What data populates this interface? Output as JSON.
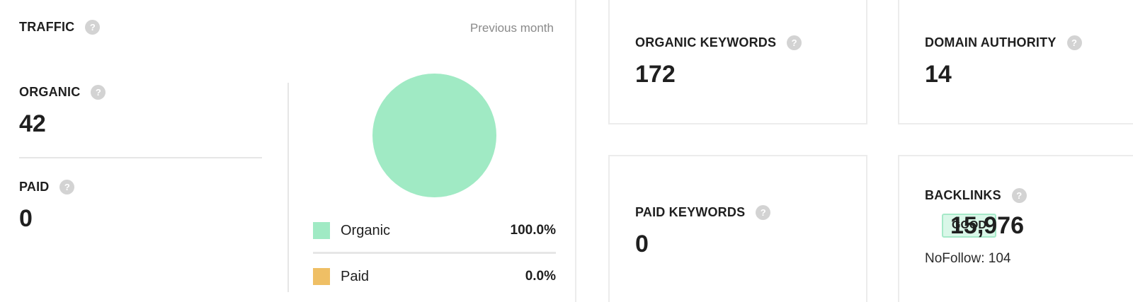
{
  "traffic": {
    "title": "TRAFFIC",
    "period": "Previous month",
    "organic": {
      "label": "ORGANIC",
      "value": "42"
    },
    "paid": {
      "label": "PAID",
      "value": "0"
    },
    "legend": [
      {
        "name": "Organic",
        "pct": "100.0%",
        "color": "#a0eac4"
      },
      {
        "name": "Paid",
        "pct": "0.0%",
        "color": "#efbf65"
      }
    ]
  },
  "cards": {
    "organic_keywords": {
      "label": "ORGANIC KEYWORDS",
      "value": "172"
    },
    "domain_authority": {
      "label": "DOMAIN AUTHORITY",
      "value": "14"
    },
    "paid_keywords": {
      "label": "PAID KEYWORDS",
      "value": "0"
    },
    "backlinks": {
      "label": "BACKLINKS",
      "value": "15,976",
      "badge": "GOOD",
      "nofollow": "NoFollow: 104"
    }
  },
  "icons": {
    "help": "?"
  },
  "chart_data": {
    "type": "pie",
    "title": "Traffic",
    "categories": [
      "Organic",
      "Paid"
    ],
    "values": [
      100.0,
      0.0
    ],
    "colors": [
      "#a0eac4",
      "#efbf65"
    ],
    "legend_position": "bottom"
  }
}
